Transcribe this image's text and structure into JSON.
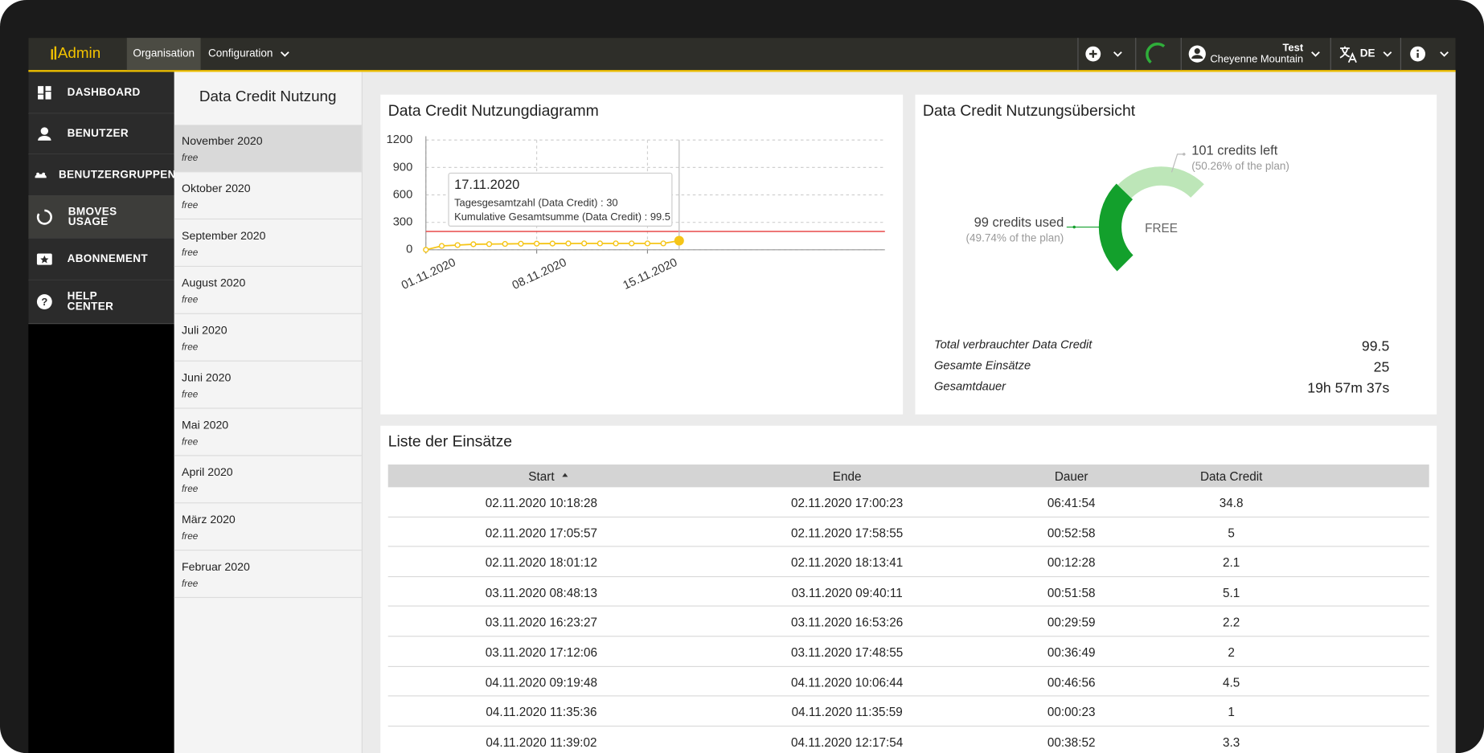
{
  "header": {
    "logo": "Admin",
    "nav": [
      "Organisation",
      "Configuration"
    ],
    "user_name": "Test",
    "user_org": "Cheyenne Mountain",
    "language": "DE"
  },
  "sidebar": {
    "items": [
      [
        "DASHBOARD"
      ],
      [
        "BENUTZER"
      ],
      [
        "BENUTZERGRUPPEN"
      ],
      [
        "BMOVES",
        "USAGE"
      ],
      [
        "ABONNEMENT"
      ],
      [
        "HELP",
        "CENTER"
      ]
    ]
  },
  "usage_list": {
    "title": "Data Credit Nutzung",
    "months": [
      {
        "label": "November 2020",
        "plan": "free"
      },
      {
        "label": "Oktober 2020",
        "plan": "free"
      },
      {
        "label": "September 2020",
        "plan": "free"
      },
      {
        "label": "August 2020",
        "plan": "free"
      },
      {
        "label": "Juli 2020",
        "plan": "free"
      },
      {
        "label": "Juni 2020",
        "plan": "free"
      },
      {
        "label": "Mai 2020",
        "plan": "free"
      },
      {
        "label": "April 2020",
        "plan": "free"
      },
      {
        "label": "März 2020",
        "plan": "free"
      },
      {
        "label": "Februar 2020",
        "plan": "free"
      }
    ]
  },
  "chart_data": [
    {
      "type": "line",
      "title": "Data Credit Nutzungdiagramm",
      "x": [
        "01.11.2020",
        "02.11.2020",
        "03.11.2020",
        "04.11.2020",
        "05.11.2020",
        "06.11.2020",
        "07.11.2020",
        "08.11.2020",
        "09.11.2020",
        "10.11.2020",
        "11.11.2020",
        "12.11.2020",
        "13.11.2020",
        "14.11.2020",
        "15.11.2020",
        "16.11.2020",
        "17.11.2020"
      ],
      "values": [
        0,
        41.9,
        51.2,
        60.4,
        62,
        64,
        66,
        67,
        68,
        69,
        69.5,
        69.5,
        69.5,
        69.5,
        69.5,
        69.5,
        99.5
      ],
      "color": "#f5c518",
      "xlim": [
        "01.11.2020",
        "30.11.2020"
      ],
      "xticks": [
        "01.11.2020",
        "08.11.2020",
        "15.11.2020"
      ],
      "ylim": [
        0,
        1200
      ],
      "yticks": [
        0,
        300,
        600,
        900,
        1200
      ],
      "grid": true,
      "threshold": {
        "value": 200,
        "color": "#e84a4a"
      },
      "tooltip": {
        "title": "17.11.2020",
        "lines": [
          "Tagesgesamtzahl (Data Credit) : 30",
          "Kumulative Gesamtsumme (Data Credit) : 99.5"
        ]
      }
    },
    {
      "type": "pie",
      "title": "Data Credit Nutzungsübersicht",
      "values": [
        99,
        101
      ],
      "value_labels": [
        "99 credits used",
        "101 credits left"
      ],
      "percent_labels": [
        "(49.74% of the plan)",
        "(50.26% of the plan)"
      ],
      "colors": [
        "#13a02c",
        "#bde6b8"
      ],
      "center_label": "FREE"
    }
  ],
  "summary": {
    "rows": [
      {
        "label": "Total verbrauchter Data Credit",
        "value": "99.5"
      },
      {
        "label": "Gesamte Einsätze",
        "value": "25"
      },
      {
        "label": "Gesamtdauer",
        "value": "19h 57m 37s"
      }
    ]
  },
  "table": {
    "title": "Liste der Einsätze",
    "columns": [
      "Start",
      "Ende",
      "Dauer",
      "Data Credit"
    ],
    "rows": [
      [
        "02.11.2020 10:18:28",
        "02.11.2020 17:00:23",
        "06:41:54",
        "34.8"
      ],
      [
        "02.11.2020 17:05:57",
        "02.11.2020 17:58:55",
        "00:52:58",
        "5"
      ],
      [
        "02.11.2020 18:01:12",
        "02.11.2020 18:13:41",
        "00:12:28",
        "2.1"
      ],
      [
        "03.11.2020 08:48:13",
        "03.11.2020 09:40:11",
        "00:51:58",
        "5.1"
      ],
      [
        "03.11.2020 16:23:27",
        "03.11.2020 16:53:26",
        "00:29:59",
        "2.2"
      ],
      [
        "03.11.2020 17:12:06",
        "03.11.2020 17:48:55",
        "00:36:49",
        "2"
      ],
      [
        "04.11.2020 09:19:48",
        "04.11.2020 10:06:44",
        "00:46:56",
        "4.5"
      ],
      [
        "04.11.2020 11:35:36",
        "04.11.2020 11:35:59",
        "00:00:23",
        "1"
      ],
      [
        "04.11.2020 11:39:02",
        "04.11.2020 12:17:54",
        "00:38:52",
        "3.3"
      ]
    ]
  }
}
